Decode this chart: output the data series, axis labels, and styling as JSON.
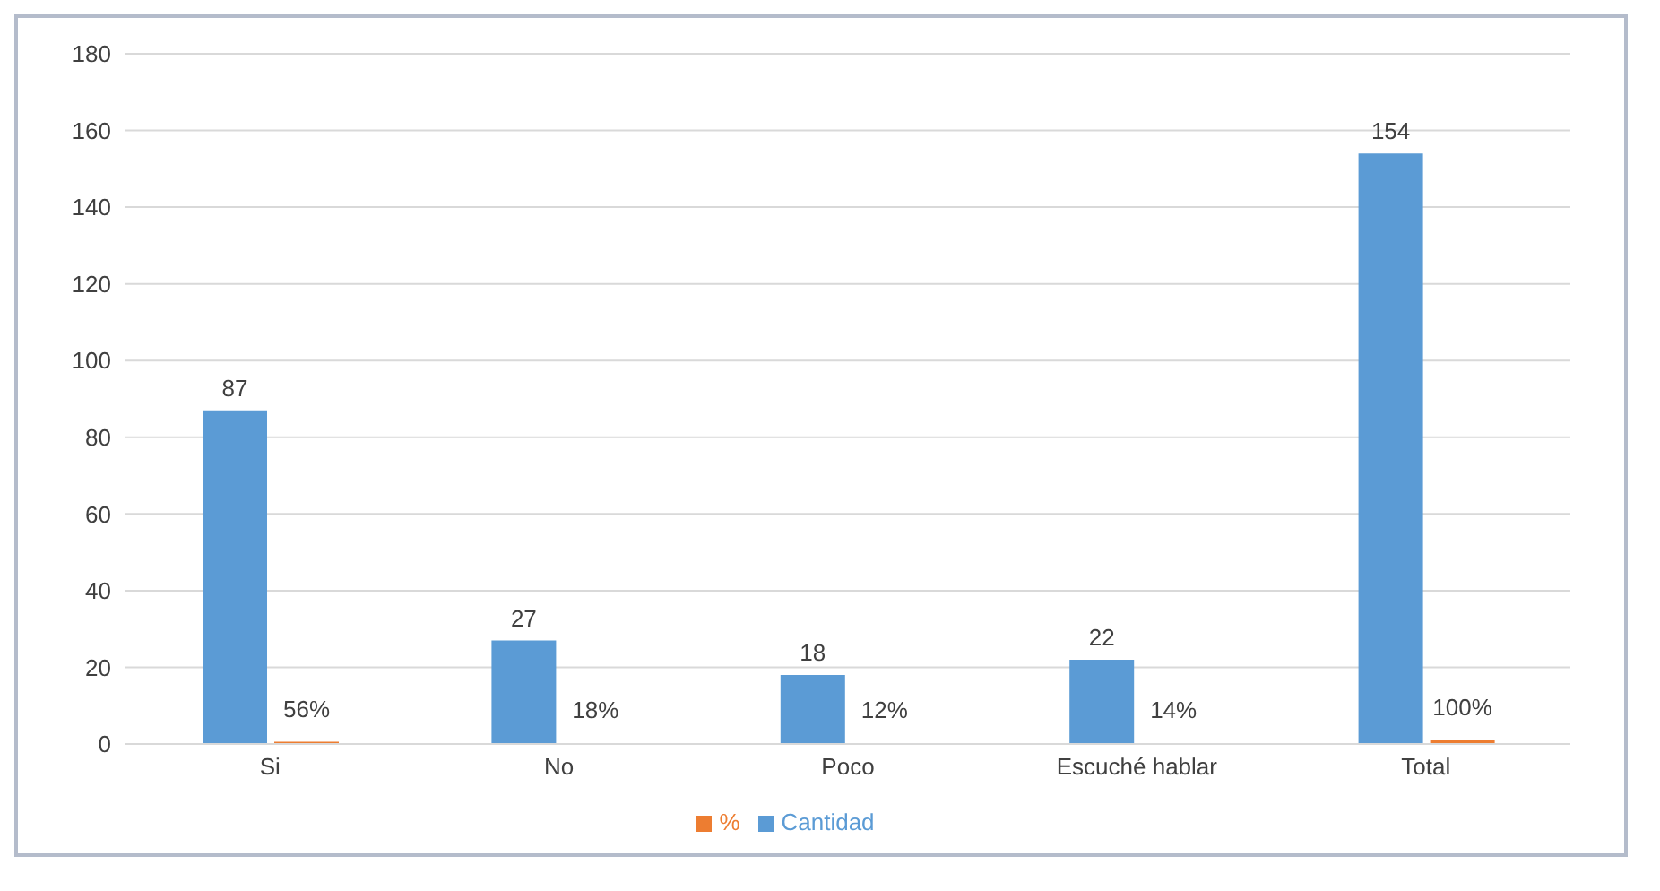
{
  "chart_data": {
    "type": "bar",
    "categories": [
      "Si",
      "No",
      "Poco",
      "Escuché hablar",
      "Total"
    ],
    "series": [
      {
        "name": "Cantidad",
        "color": "#5b9bd5",
        "values": [
          87,
          27,
          18,
          22,
          154
        ],
        "value_labels": [
          "87",
          "27",
          "18",
          "22",
          "154"
        ]
      },
      {
        "name": "%",
        "color": "#ed7d31",
        "values": [
          0.56,
          0.18,
          0.12,
          0.14,
          1
        ],
        "value_labels": [
          "56%",
          "18%",
          "12%",
          "14%",
          "100%"
        ]
      }
    ],
    "ylim": [
      0,
      180
    ],
    "yticks": [
      0,
      20,
      40,
      60,
      80,
      100,
      120,
      140,
      160,
      180
    ],
    "grid": "y",
    "legend": "bottom"
  }
}
